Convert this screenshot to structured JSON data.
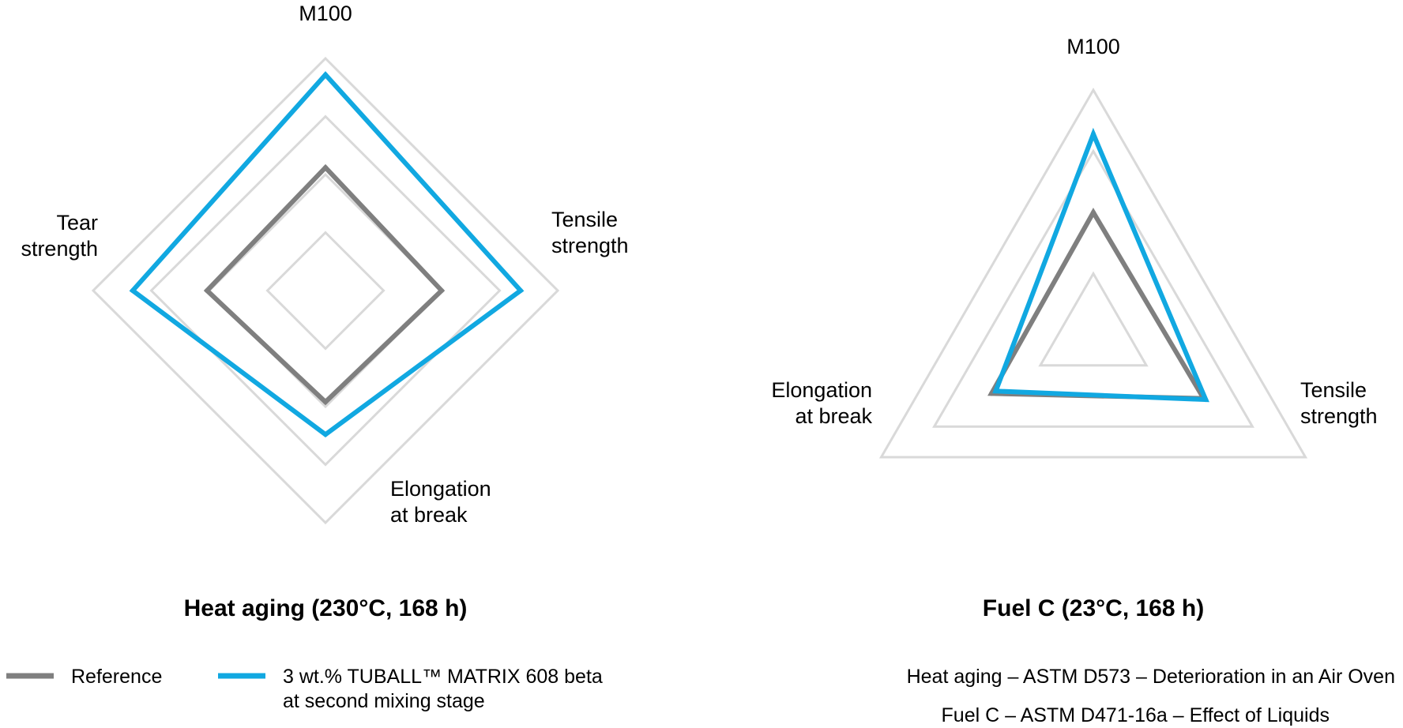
{
  "chart_data": [
    {
      "type": "radar",
      "title": "Heat aging (230°C, 168 h)",
      "axes": [
        {
          "lines": [
            "M100"
          ]
        },
        {
          "lines": [
            "Tensile",
            "strength"
          ]
        },
        {
          "lines": [
            "Elongation",
            "at break"
          ]
        },
        {
          "lines": [
            "Tear",
            "strength"
          ]
        }
      ],
      "grid_levels": [
        0.25,
        0.5,
        0.75,
        1.0
      ],
      "series": [
        {
          "key": "reference",
          "color": "#7f7f7f",
          "values": [
            0.53,
            0.5,
            0.48,
            0.51
          ]
        },
        {
          "key": "tuball",
          "color": "#11a8e1",
          "values": [
            0.93,
            0.84,
            0.62,
            0.83
          ]
        }
      ]
    },
    {
      "type": "radar",
      "title": "Fuel C (23°C, 168 h)",
      "axes": [
        {
          "lines": [
            "M100"
          ]
        },
        {
          "lines": [
            "Tensile",
            "strength"
          ]
        },
        {
          "lines": [
            "Elongation",
            "at break"
          ]
        }
      ],
      "grid_levels": [
        0.25,
        0.75,
        1.0
      ],
      "series": [
        {
          "key": "reference",
          "color": "#7f7f7f",
          "values": [
            0.5,
            0.52,
            0.48
          ]
        },
        {
          "key": "tuball",
          "color": "#11a8e1",
          "values": [
            0.82,
            0.53,
            0.46
          ]
        }
      ]
    }
  ],
  "legend": [
    {
      "key": "reference",
      "lines": [
        "Reference"
      ],
      "color": "#7f7f7f"
    },
    {
      "key": "tuball",
      "lines": [
        "3 wt.% TUBALL™ MATRIX 608 beta",
        "at second mixing stage"
      ],
      "color": "#11a8e1"
    }
  ],
  "notes": [
    "Heat aging – ASTM D573 – Deterioration in an Air Oven",
    "Fuel C – ASTM D471-16a – Effect of Liquids"
  ],
  "colors": {
    "grid": "#d9d9d9",
    "text": "#000000"
  }
}
